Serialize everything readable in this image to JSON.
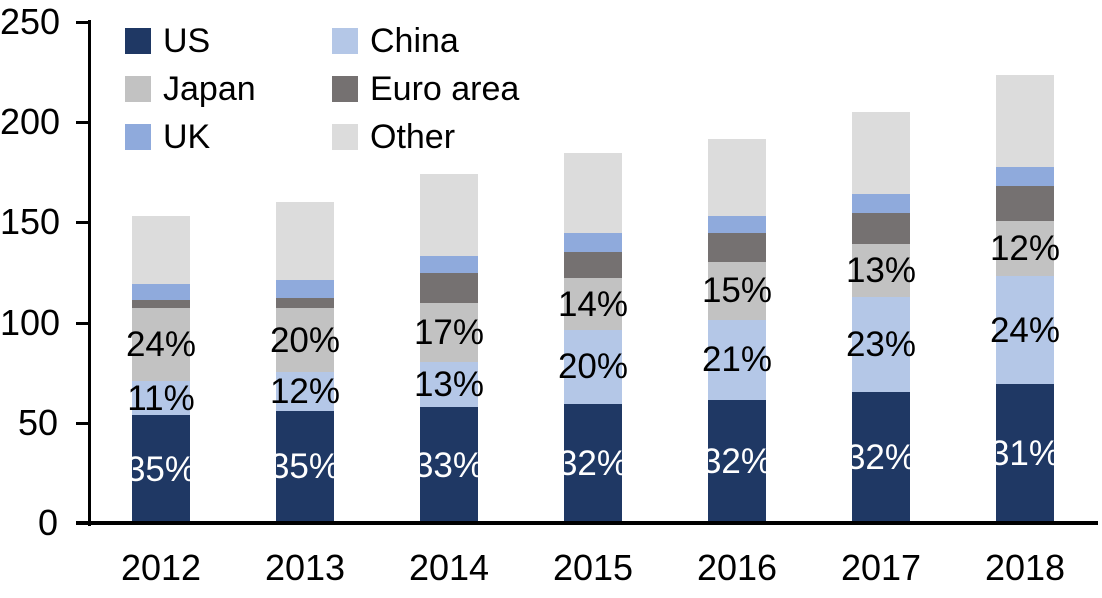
{
  "chart_data": {
    "type": "bar",
    "stacked": true,
    "title": "",
    "xlabel": "",
    "ylabel": "",
    "categories": [
      "2012",
      "2013",
      "2014",
      "2015",
      "2016",
      "2017",
      "2018"
    ],
    "series": [
      {
        "name": "US",
        "color": "#1F3864",
        "values": [
          53.7,
          56.0,
          57.8,
          59.5,
          61.3,
          65.5,
          69.5
        ],
        "labels": [
          "35%",
          "35%",
          "33%",
          "32%",
          "32%",
          "32%",
          "31%"
        ],
        "label_color": "#FFFFFF"
      },
      {
        "name": "China",
        "color": "#B4C7E7",
        "values": [
          17.0,
          19.4,
          22.6,
          36.8,
          40.2,
          47.2,
          53.6
        ],
        "labels": [
          "11%",
          "12%",
          "13%",
          "20%",
          "21%",
          "23%",
          "24%"
        ],
        "label_color": "#000000"
      },
      {
        "name": "Japan",
        "color": "#C2C2C2",
        "values": [
          36.6,
          31.8,
          29.5,
          25.8,
          28.7,
          26.7,
          27.5
        ],
        "labels": [
          "24%",
          "20%",
          "17%",
          "14%",
          "15%",
          "13%",
          "12%"
        ],
        "label_color": "#000000"
      },
      {
        "name": "Euro area",
        "color": "#757171",
        "values": [
          4.2,
          5.0,
          14.8,
          13.4,
          14.3,
          15.5,
          17.8
        ],
        "labels": null,
        "label_color": null
      },
      {
        "name": "UK",
        "color": "#8FAADC",
        "values": [
          8.0,
          8.9,
          8.6,
          9.5,
          8.7,
          9.3,
          9.4
        ],
        "labels": null,
        "label_color": null
      },
      {
        "name": "Other",
        "color": "#DCDCDC",
        "values": [
          34.0,
          38.9,
          40.7,
          39.5,
          38.3,
          40.8,
          45.7
        ],
        "labels": null,
        "label_color": null
      }
    ],
    "totals": [
      153.5,
      160.0,
      174.0,
      184.5,
      191.5,
      205.0,
      223.5
    ],
    "y_axis": {
      "min": 0,
      "max": 250,
      "ticks": [
        "0",
        "50",
        "100",
        "150",
        "200",
        "250"
      ]
    },
    "legend": {
      "position": "top-left",
      "columns": 2,
      "order": [
        "US",
        "China",
        "Japan",
        "Euro area",
        "UK",
        "Other"
      ]
    },
    "axis_color": "#000000",
    "background_color": "#FFFFFF"
  }
}
